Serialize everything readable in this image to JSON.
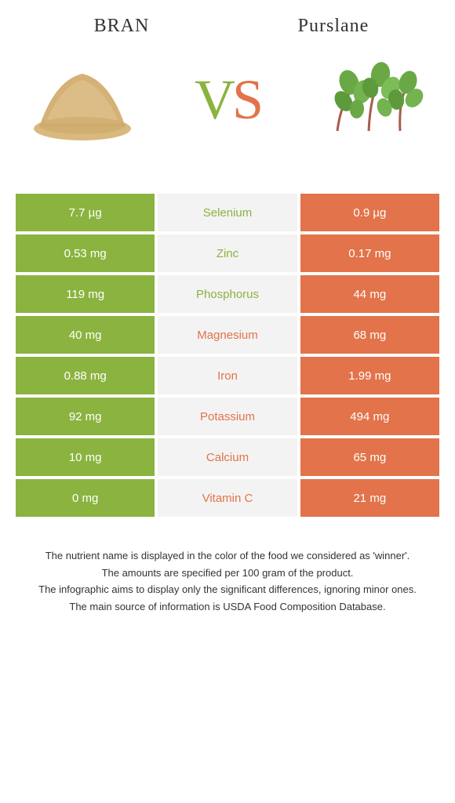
{
  "header": {
    "left_title": "BRAN",
    "right_title": "Purslane"
  },
  "vs": {
    "v": "V",
    "s": "S"
  },
  "colors": {
    "left": "#8bb33f",
    "right": "#e2734a",
    "mid_bg": "#f3f3f3",
    "white_text": "#ffffff",
    "body_text": "#333333"
  },
  "rows": [
    {
      "left": "7.7 µg",
      "label": "Selenium",
      "right": "0.9 µg",
      "winner": "left"
    },
    {
      "left": "0.53 mg",
      "label": "Zinc",
      "right": "0.17 mg",
      "winner": "left"
    },
    {
      "left": "119 mg",
      "label": "Phosphorus",
      "right": "44 mg",
      "winner": "left"
    },
    {
      "left": "40 mg",
      "label": "Magnesium",
      "right": "68 mg",
      "winner": "right"
    },
    {
      "left": "0.88 mg",
      "label": "Iron",
      "right": "1.99 mg",
      "winner": "right"
    },
    {
      "left": "92 mg",
      "label": "Potassium",
      "right": "494 mg",
      "winner": "right"
    },
    {
      "left": "10 mg",
      "label": "Calcium",
      "right": "65 mg",
      "winner": "right"
    },
    {
      "left": "0 mg",
      "label": "Vitamin C",
      "right": "21 mg",
      "winner": "right"
    }
  ],
  "footnotes": [
    "The nutrient name is displayed in the color of the food we considered as 'winner'.",
    "The amounts are specified per 100 gram of the product.",
    "The infographic aims to display only the significant differences, ignoring minor ones.",
    "The main source of information is USDA Food Composition Database."
  ]
}
